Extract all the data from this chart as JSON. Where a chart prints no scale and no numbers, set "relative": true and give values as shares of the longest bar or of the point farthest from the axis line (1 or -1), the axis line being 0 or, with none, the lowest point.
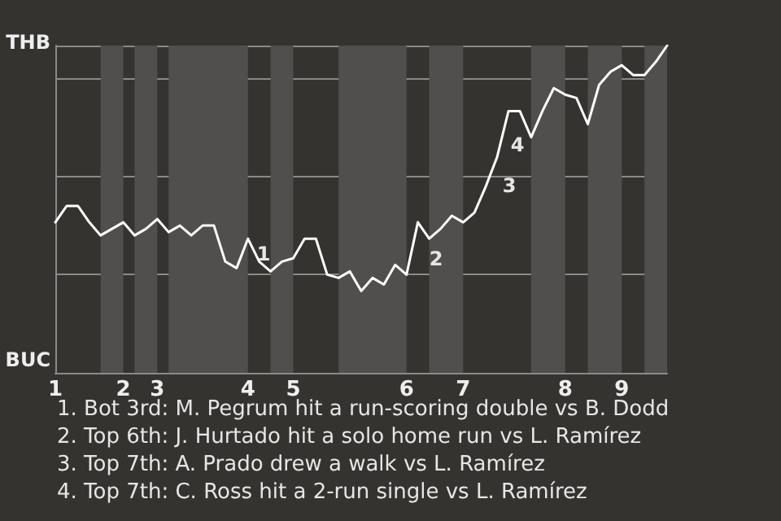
{
  "chart_data": {
    "type": "line",
    "relative": true,
    "categories": [
      "1",
      null,
      null,
      null,
      null,
      null,
      "2",
      null,
      null,
      "3",
      null,
      null,
      null,
      null,
      null,
      null,
      null,
      "4",
      null,
      null,
      null,
      "5",
      null,
      null,
      null,
      null,
      null,
      null,
      null,
      null,
      null,
      "6",
      null,
      null,
      null,
      null,
      "7",
      null,
      null,
      null,
      null,
      null,
      null,
      null,
      null,
      "8",
      null,
      null,
      null,
      null,
      "9",
      null,
      null,
      null,
      null
    ],
    "series": [
      {
        "color": "#ffffff",
        "values": [
          0.46,
          0.51,
          0.51,
          0.46,
          0.42,
          0.44,
          0.46,
          0.42,
          0.44,
          0.47,
          0.43,
          0.45,
          0.42,
          0.45,
          0.45,
          0.34,
          0.32,
          0.41,
          0.34,
          0.31,
          0.34,
          0.35,
          0.41,
          0.41,
          0.3,
          0.29,
          0.31,
          0.25,
          0.29,
          0.27,
          0.33,
          0.3,
          0.46,
          0.41,
          0.44,
          0.48,
          0.46,
          0.49,
          0.57,
          0.66,
          0.8,
          0.8,
          0.72,
          0.8,
          0.87,
          0.85,
          0.84,
          0.76,
          0.88,
          0.92,
          0.94,
          0.91,
          0.91,
          0.95,
          1.0
        ],
        "name": null
      }
    ],
    "grid": "y",
    "marker": "none",
    "line_style": "solid",
    "annotations": [
      "THB",
      "BUC",
      "1",
      "2",
      "3",
      "4",
      "1. Bot 3rd: M. Pegrum hit a run-scoring double vs B. Dodd",
      "2. Top 6th: J. Hurtado hit a solo home run vs L. Ramírez",
      "3. Top 7th: A. Prado drew a walk vs L. Ramírez",
      "4. Top 7th: C. Ross hit a 2-run single vs L. Ramírez"
    ]
  }
}
